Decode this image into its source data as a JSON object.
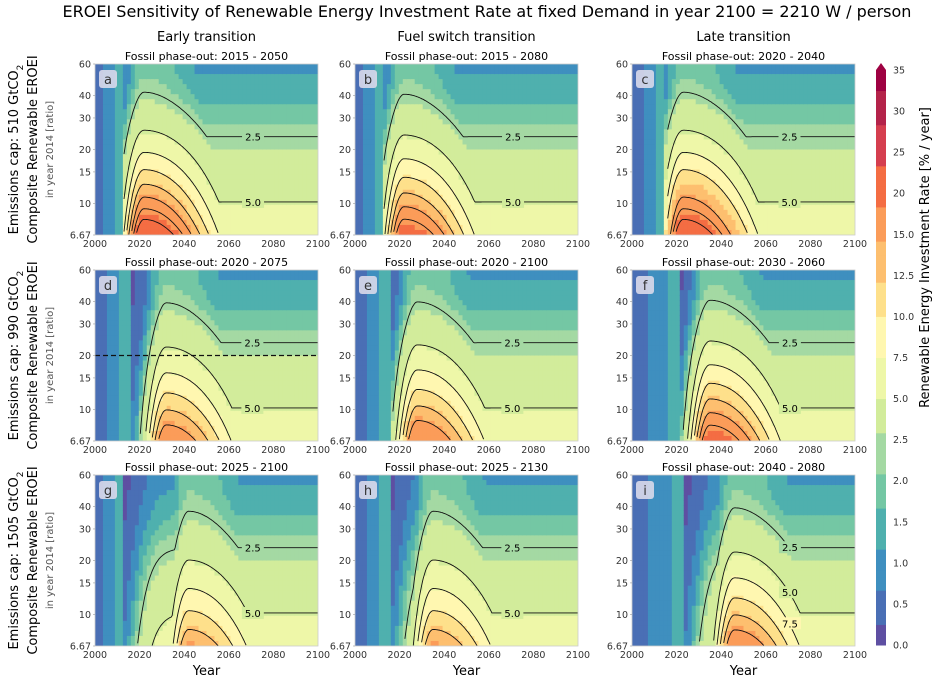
{
  "title": "EROEI Sensitivity of Renewable Energy Investment Rate at fixed Demand in year 2100 = 2210 W / person",
  "chart_data": {
    "type": "heatmap",
    "column_titles": [
      "Early transition",
      "Fuel switch transition",
      "Late transition"
    ],
    "row_labels": [
      {
        "main": "Emissions cap: 510 GtCO",
        "sub": "2",
        "line2": "Composite Renewable EROEI",
        "line3": "in year 2014 [ratio]"
      },
      {
        "main": "Emissions cap: 990 GtCO",
        "sub": "2",
        "line2": "Composite Renewable EROEI",
        "line3": "in year 2014 [ratio]"
      },
      {
        "main": "Emissions cap: 1505 GtCO",
        "sub": "2",
        "line2": "Composite Renewable EROEI",
        "line3": "in year 2014 [ratio]"
      }
    ],
    "xlabel": "Year",
    "x_ticks": [
      "2000",
      "2020",
      "2040",
      "2060",
      "2080",
      "2100"
    ],
    "xlim": [
      2000,
      2100
    ],
    "y_ticks": [
      "6.67",
      "10",
      "15",
      "20",
      "30",
      "40",
      "60"
    ],
    "ylim": [
      6.67,
      60
    ],
    "y_scale": "log",
    "colorbar": {
      "label": "Renewable Energy Investment Rate [% / year]",
      "ticks": [
        "0.0",
        "0.5",
        "1.0",
        "1.5",
        "2.0",
        "2.5",
        "5.0",
        "7.5",
        "10.0",
        "12.5",
        "15.0",
        "20",
        "25",
        "30",
        "35"
      ],
      "range": [
        0,
        35
      ]
    },
    "panels": [
      {
        "letter": "a",
        "subtitle": "Fossil phase-out: 2015 - 2050",
        "peak_year": 2022,
        "peak_rate": 22,
        "cutoff_year": 2012,
        "contours": [
          "2.5",
          "5.0",
          "7.5",
          "10.0",
          "12.5",
          "15.0",
          "17.5",
          "20.0"
        ],
        "dashed_ref": null
      },
      {
        "letter": "b",
        "subtitle": "Fossil phase-out: 2015 - 2080",
        "peak_year": 2022,
        "peak_rate": 19,
        "cutoff_year": 2012,
        "contours": [
          "2.5",
          "5.0",
          "7.5",
          "10.0",
          "12.5",
          "15.0",
          "17.5"
        ],
        "dashed_ref": null
      },
      {
        "letter": "c",
        "subtitle": "Fossil phase-out: 2020 - 2040",
        "peak_year": 2023,
        "peak_rate": 22,
        "cutoff_year": 2015,
        "contours": [
          "2.5",
          "5.0",
          "7.5",
          "10.0",
          "15.0",
          "17.5",
          "20.0"
        ],
        "dashed_ref": null
      },
      {
        "letter": "d",
        "subtitle": "Fossil phase-out: 2020 - 2075",
        "peak_year": 2032,
        "peak_rate": 16,
        "cutoff_year": 2016,
        "contours": [
          "2.5",
          "5.0",
          "7.5",
          "10.0",
          "12.5",
          "15.0"
        ],
        "dashed_ref": 20
      },
      {
        "letter": "e",
        "subtitle": "Fossil phase-out: 2020 - 2100",
        "peak_year": 2028,
        "peak_rate": 17,
        "cutoff_year": 2016,
        "contours": [
          "2.5",
          "5.0",
          "7.5",
          "10.0",
          "12.5",
          "15.0"
        ],
        "dashed_ref": null
      },
      {
        "letter": "f",
        "subtitle": "Fossil phase-out: 2030 - 2060",
        "peak_year": 2035,
        "peak_rate": 19,
        "cutoff_year": 2022,
        "contours": [
          "2.5",
          "7.5",
          "5.0",
          "10.0",
          "12.5",
          "15.0",
          "17.5"
        ],
        "dashed_ref": null
      },
      {
        "letter": "g",
        "subtitle": "Fossil phase-out: 2025 - 2100",
        "peak_year": 2042,
        "peak_rate": 13,
        "cutoff_year": 2013,
        "contours": [
          "2.5",
          "5.0",
          "7.5",
          "10.0",
          "12.5"
        ],
        "dashed_ref": null
      },
      {
        "letter": "h",
        "subtitle": "Fossil phase-out: 2025 - 2130",
        "peak_year": 2035,
        "peak_rate": 13,
        "cutoff_year": 2016,
        "contours": [
          "2.5",
          "5.0",
          "7.5",
          "10.0",
          "12.5"
        ],
        "dashed_ref": null
      },
      {
        "letter": "i",
        "subtitle": "Fossil phase-out: 2040 - 2080",
        "peak_year": 2046,
        "peak_rate": 16,
        "cutoff_year": 2024,
        "contours": [
          "2.5",
          "5.0",
          "7.5",
          "10.0",
          "12.5",
          "15.0"
        ],
        "dashed_ref": null
      }
    ]
  },
  "colors": {
    "palette": [
      "#5e4fa2",
      "#4a6fb5",
      "#3f8fbf",
      "#4fb0ae",
      "#74c7a4",
      "#a4d9a3",
      "#d2ec9b",
      "#eef7a8",
      "#fff7b0",
      "#fee08b",
      "#fdbf6f",
      "#fb9c59",
      "#f46d43",
      "#d53e4f",
      "#b4234a",
      "#9e0142"
    ]
  }
}
